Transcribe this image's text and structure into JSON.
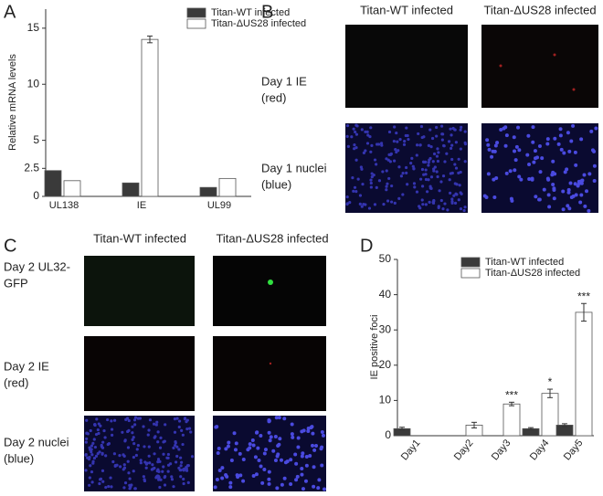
{
  "panel_labels": [
    "A",
    "B",
    "C",
    "D"
  ],
  "panel_b": {
    "columns": [
      "Titan-WT infected",
      "Titan-ΔUS28 infected"
    ],
    "rows": [
      [
        "Day 1 IE",
        "(red)"
      ],
      [
        "Day 1 nuclei",
        "(blue)"
      ]
    ]
  },
  "panel_c": {
    "columns": [
      "Titan-WT infected",
      "Titan-ΔUS28 infected"
    ],
    "rows": [
      [
        "Day 2 UL32-",
        "GFP"
      ],
      [
        "Day 2 IE",
        "(red)"
      ],
      [
        "Day 2 nuclei",
        "(blue)"
      ]
    ]
  },
  "chart_data": [
    {
      "type": "bar",
      "y_label": "Relative mRNA levels",
      "categories": [
        "UL138",
        "IE",
        "UL99"
      ],
      "series": [
        {
          "name": "Titan-WT infected",
          "color": "#3a3a3a",
          "values": [
            2.3,
            1.2,
            0.8
          ],
          "errors": [
            null,
            null,
            null
          ]
        },
        {
          "name": "Titan-ΔUS28 infected",
          "color": "#ffffff",
          "values": [
            1.4,
            14,
            1.6
          ],
          "errors": [
            null,
            0.3,
            null
          ]
        }
      ],
      "ylim": [
        0,
        16.7
      ],
      "yticks": [
        0,
        2.5,
        5,
        10,
        15
      ],
      "legend": "top-right"
    },
    {
      "type": "bar",
      "y_label": "IE positive foci",
      "categories": [
        "Day1",
        "Day2",
        "Day3",
        "Day4",
        "Day5"
      ],
      "series": [
        {
          "name": "Titan-WT infected",
          "color": "#3a3a3a",
          "values": [
            2,
            0,
            0,
            2,
            3
          ],
          "errors": [
            0.4,
            null,
            null,
            0.3,
            0.4
          ]
        },
        {
          "name": "Titan-ΔUS28 infected",
          "color": "#ffffff",
          "values": [
            0,
            3,
            9,
            12,
            35
          ],
          "errors": [
            null,
            0.8,
            0.5,
            1.2,
            2.5
          ]
        }
      ],
      "significance": [
        null,
        null,
        "***",
        "*",
        "***"
      ],
      "ylim": [
        0,
        50
      ],
      "yticks": [
        0,
        10,
        20,
        30,
        40,
        50
      ],
      "legend": "top-right"
    }
  ]
}
